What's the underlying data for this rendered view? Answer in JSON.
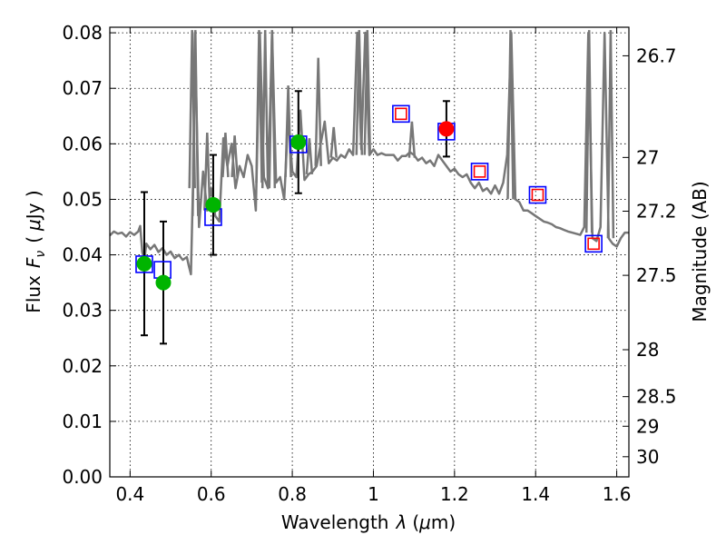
{
  "chart_data": {
    "type": "scatter",
    "xlabel_text": "Wavelength",
    "xlabel_symbol": "λ",
    "xlabel_unit_open": "(",
    "xlabel_unit_mu": "μ",
    "xlabel_unit_rest": "m)",
    "ylabel_text": "Flux",
    "ylabel_symbol": "F",
    "ylabel_subscript": "ν",
    "ylabel_unit_open": "(",
    "ylabel_unit_mu": "μ",
    "ylabel_unit_rest": "Jy )",
    "y2label": "Magnitude (AB)",
    "xlim": [
      0.35,
      1.63
    ],
    "ylim": [
      0.0,
      0.081
    ],
    "grid": true,
    "x_ticks": [
      0.4,
      0.6,
      0.8,
      1.0,
      1.2,
      1.4,
      1.6
    ],
    "x_tick_labels": [
      "0.4",
      "0.6",
      "0.8",
      "1",
      "1.2",
      "1.4",
      "1.6"
    ],
    "y_ticks": [
      0.0,
      0.01,
      0.02,
      0.03,
      0.04,
      0.05,
      0.06,
      0.07,
      0.08
    ],
    "y_tick_labels": [
      "0.00",
      "0.01",
      "0.02",
      "0.03",
      "0.04",
      "0.05",
      "0.06",
      "0.07",
      "0.08"
    ],
    "y2_ticks": [
      26.7,
      27,
      27.2,
      27.5,
      28,
      28.5,
      29,
      30
    ],
    "y2_tick_labels": [
      "26.7",
      "27",
      "27.2",
      "27.5",
      "28",
      "28.5",
      "29",
      "30"
    ],
    "series": [
      {
        "name": "model SED",
        "style": "line",
        "color": "#777777",
        "x": [
          0.35,
          0.36,
          0.37,
          0.38,
          0.39,
          0.4,
          0.41,
          0.42,
          0.425,
          0.43,
          0.435,
          0.44,
          0.45,
          0.46,
          0.47,
          0.48,
          0.49,
          0.5,
          0.51,
          0.52,
          0.53,
          0.54,
          0.545,
          0.55,
          0.555,
          0.56,
          0.57,
          0.58,
          0.59,
          0.6,
          0.61,
          0.62,
          0.63,
          0.64,
          0.65,
          0.66,
          0.67,
          0.68,
          0.69,
          0.7,
          0.71,
          0.72,
          0.73,
          0.74,
          0.75,
          0.76,
          0.77,
          0.78,
          0.79,
          0.8,
          0.81,
          0.82,
          0.83,
          0.84,
          0.85,
          0.86,
          0.87,
          0.88,
          0.89,
          0.9,
          0.91,
          0.92,
          0.93,
          0.94,
          0.95,
          0.96,
          0.97,
          0.98,
          0.99,
          1.0,
          1.01,
          1.02,
          1.03,
          1.04,
          1.05,
          1.06,
          1.07,
          1.08,
          1.09,
          1.1,
          1.11,
          1.12,
          1.13,
          1.14,
          1.15,
          1.16,
          1.17,
          1.18,
          1.19,
          1.2,
          1.21,
          1.22,
          1.23,
          1.24,
          1.25,
          1.26,
          1.27,
          1.28,
          1.29,
          1.3,
          1.31,
          1.32,
          1.33,
          1.34,
          1.35,
          1.36,
          1.37,
          1.38,
          1.39,
          1.4,
          1.41,
          1.42,
          1.43,
          1.44,
          1.45,
          1.46,
          1.47,
          1.48,
          1.49,
          1.5,
          1.51,
          1.52,
          1.53,
          1.54,
          1.55,
          1.56,
          1.57,
          1.58,
          1.59,
          1.6,
          1.61,
          1.62,
          1.63
        ],
        "y": [
          0.0435,
          0.0442,
          0.0438,
          0.044,
          0.0433,
          0.0441,
          0.0436,
          0.0442,
          0.0452,
          0.0405,
          0.039,
          0.042,
          0.041,
          0.0418,
          0.0405,
          0.0412,
          0.04,
          0.0406,
          0.0394,
          0.04,
          0.0391,
          0.0396,
          0.038,
          0.0365,
          0.052,
          0.08,
          0.045,
          0.055,
          0.048,
          0.052,
          0.047,
          0.046,
          0.061,
          0.056,
          0.06,
          0.052,
          0.056,
          0.054,
          0.058,
          0.056,
          0.048,
          0.08,
          0.054,
          0.052,
          0.08,
          0.053,
          0.054,
          0.05,
          0.065,
          0.055,
          0.054,
          0.066,
          0.0535,
          0.0545,
          0.055,
          0.056,
          0.06,
          0.064,
          0.0565,
          0.0575,
          0.057,
          0.058,
          0.0575,
          0.059,
          0.058,
          0.08,
          0.059,
          0.08,
          0.058,
          0.059,
          0.058,
          0.0583,
          0.058,
          0.058,
          0.058,
          0.057,
          0.0578,
          0.0578,
          0.0585,
          0.058,
          0.057,
          0.0575,
          0.0565,
          0.057,
          0.056,
          0.058,
          0.057,
          0.056,
          0.055,
          0.0555,
          0.0545,
          0.054,
          0.0545,
          0.053,
          0.052,
          0.053,
          0.0515,
          0.052,
          0.051,
          0.0525,
          0.051,
          0.053,
          0.058,
          0.08,
          0.05,
          0.0495,
          0.048,
          0.048,
          0.0475,
          0.047,
          0.0465,
          0.046,
          0.0458,
          0.0455,
          0.045,
          0.0448,
          0.0445,
          0.0442,
          0.044,
          0.0438,
          0.0436,
          0.045,
          0.08,
          0.043,
          0.0425,
          0.045,
          0.08,
          0.043,
          0.042,
          0.0415,
          0.043,
          0.044,
          0.044
        ],
        "spikes": [
          {
            "x": 0.553,
            "peak": 0.0805,
            "base": 0.052
          },
          {
            "x": 0.561,
            "peak": 0.0805,
            "base": 0.047
          },
          {
            "x": 0.59,
            "peak": 0.062,
            "base": 0.048
          },
          {
            "x": 0.635,
            "peak": 0.062,
            "base": 0.054
          },
          {
            "x": 0.658,
            "peak": 0.0615,
            "base": 0.054
          },
          {
            "x": 0.718,
            "peak": 0.0805,
            "base": 0.053
          },
          {
            "x": 0.733,
            "peak": 0.0805,
            "base": 0.052
          },
          {
            "x": 0.75,
            "peak": 0.0805,
            "base": 0.052
          },
          {
            "x": 0.79,
            "peak": 0.0705,
            "base": 0.054
          },
          {
            "x": 0.842,
            "peak": 0.061,
            "base": 0.0545
          },
          {
            "x": 0.864,
            "peak": 0.0755,
            "base": 0.056
          },
          {
            "x": 0.902,
            "peak": 0.063,
            "base": 0.0575
          },
          {
            "x": 0.965,
            "peak": 0.0805,
            "base": 0.058
          },
          {
            "x": 0.985,
            "peak": 0.0805,
            "base": 0.058
          },
          {
            "x": 1.095,
            "peak": 0.064,
            "base": 0.0575
          },
          {
            "x": 1.338,
            "peak": 0.0805,
            "base": 0.05
          },
          {
            "x": 1.532,
            "peak": 0.0805,
            "base": 0.044
          },
          {
            "x": 1.585,
            "peak": 0.0805,
            "base": 0.043
          }
        ]
      },
      {
        "name": "measured (green)",
        "style": "circle",
        "color": "#00b400",
        "x": [
          0.435,
          0.482,
          0.605,
          0.815
        ],
        "y": [
          0.0384,
          0.035,
          0.049,
          0.0603
        ],
        "err": [
          0.0129,
          0.011,
          0.009,
          0.0092
        ]
      },
      {
        "name": "measured (red)",
        "style": "circle",
        "color": "#ff0000",
        "x": [
          1.18
        ],
        "y": [
          0.0627
        ],
        "err": [
          0.005
        ]
      },
      {
        "name": "model photometry (blue squares)",
        "style": "square-open",
        "color": "#0000ff",
        "x": [
          0.435,
          0.48,
          0.605,
          0.815,
          1.068,
          1.18,
          1.262,
          1.405,
          1.543
        ],
        "y": [
          0.0383,
          0.0373,
          0.0468,
          0.0599,
          0.0654,
          0.0622,
          0.055,
          0.0508,
          0.042
        ]
      },
      {
        "name": "model photometry (red squares)",
        "style": "square-open-small",
        "color": "#ff0000",
        "x": [
          1.068,
          1.262,
          1.405,
          1.543
        ],
        "y": [
          0.0654,
          0.055,
          0.0508,
          0.042
        ]
      }
    ]
  }
}
